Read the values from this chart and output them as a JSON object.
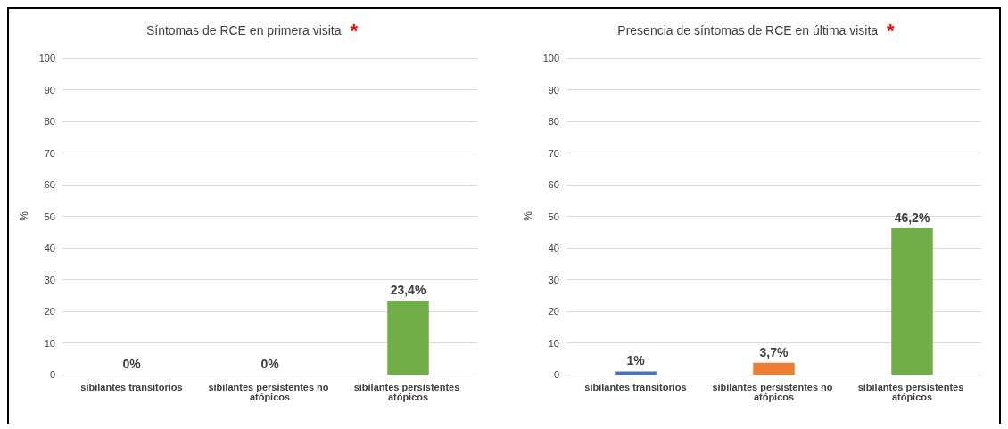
{
  "chart_data": [
    {
      "type": "bar",
      "title": "Síntomas de RCE en primera visita",
      "annotations": [
        "*"
      ],
      "ylabel": "%",
      "categories": [
        "sibilantes transitorios",
        "sibilantes persistentes no atópicos",
        "sibilantes persistentes atópicos"
      ],
      "values": [
        0,
        0,
        23.4
      ],
      "colors": [
        "#4472c4",
        "#ed7d31",
        "#70ad47"
      ],
      "value_labels": [
        "0%",
        "0%",
        "23,4%"
      ],
      "ylim": [
        0,
        100
      ],
      "yticks": [
        0,
        10,
        20,
        30,
        40,
        50,
        60,
        70,
        80,
        90,
        100
      ],
      "grid": "y"
    },
    {
      "type": "bar",
      "title": "Presencia de síntomas de RCE en última visita",
      "annotations": [
        "*"
      ],
      "ylabel": "%",
      "categories": [
        "sibilantes transitorios",
        "sibilantes persistentes no atópicos",
        "sibilantes persistentes atópicos"
      ],
      "values": [
        1,
        3.7,
        46.2
      ],
      "colors": [
        "#4472c4",
        "#ed7d31",
        "#70ad47"
      ],
      "value_labels": [
        "1%",
        "3,7%",
        "46,2%"
      ],
      "ylim": [
        0,
        100
      ],
      "yticks": [
        0,
        10,
        20,
        30,
        40,
        50,
        60,
        70,
        80,
        90,
        100
      ],
      "grid": "y"
    }
  ]
}
